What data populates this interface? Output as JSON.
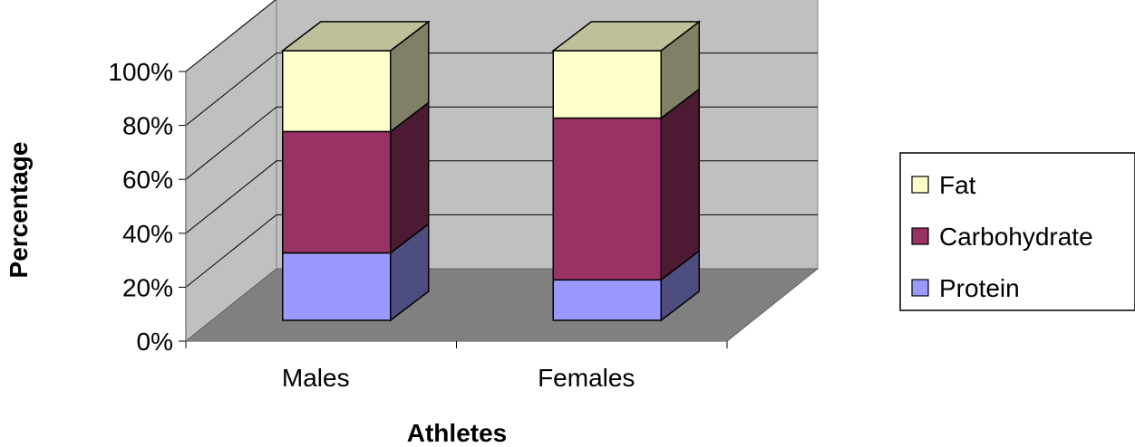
{
  "chart_data": {
    "type": "bar",
    "stacked": true,
    "style": "3d",
    "title": "",
    "xlabel": "Athletes",
    "ylabel": "Percentage",
    "ylim": [
      0,
      100
    ],
    "y_ticks": [
      "0%",
      "20%",
      "40%",
      "60%",
      "80%",
      "100%"
    ],
    "categories": [
      "Males",
      "Females"
    ],
    "series": [
      {
        "name": "Protein",
        "values": [
          25,
          15
        ],
        "color": "#9999FF"
      },
      {
        "name": "Carbohydrate",
        "values": [
          45,
          60
        ],
        "color": "#993366"
      },
      {
        "name": "Fat",
        "values": [
          30,
          25
        ],
        "color": "#FFFFCC"
      }
    ],
    "legend": {
      "position": "right",
      "order": [
        "Fat",
        "Carbohydrate",
        "Protein"
      ]
    },
    "grid": true,
    "colors": {
      "wall": "#C0C0C0",
      "floor": "#808080",
      "gridline": "#000000"
    }
  }
}
